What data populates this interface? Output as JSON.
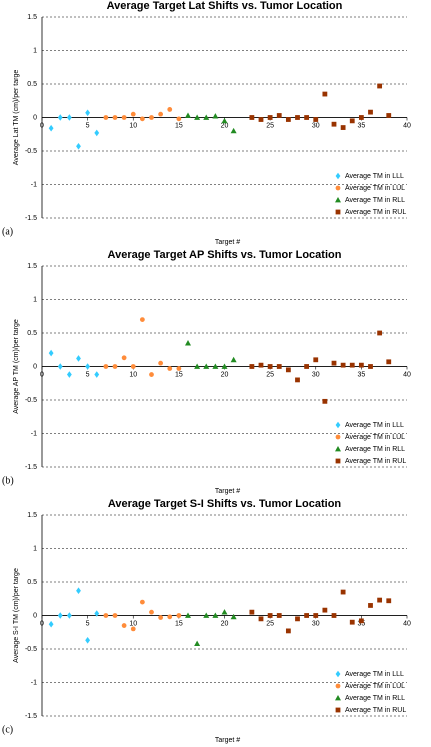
{
  "chart_data": [
    {
      "type": "scatter",
      "title": "Average Target Lat Shifts vs. Tumor Location",
      "panel_label": "(a)",
      "x_label": "Target #",
      "y_label": "Average Lat TM (cm)/per targe",
      "xlim": [
        0,
        40
      ],
      "xticks": [
        0,
        5,
        10,
        15,
        20,
        25,
        30,
        35,
        40
      ],
      "ylim": [
        -1.5,
        1.5
      ],
      "yticks": [
        1.5,
        1,
        0.5,
        0,
        -0.5,
        -1,
        -1.5
      ],
      "grid": true,
      "legend": "lower-right",
      "series": [
        {
          "name": "Average TM in LLL",
          "color": "#33ccff",
          "marker": "diamond",
          "x": [
            1,
            2,
            3,
            4,
            5,
            6
          ],
          "values": [
            -0.16,
            0,
            0,
            -0.43,
            0.07,
            -0.23
          ]
        },
        {
          "name": "Average TM in LUL",
          "color": "#ff8c3a",
          "marker": "circle",
          "x": [
            7,
            8,
            9,
            10,
            11,
            12,
            13,
            14,
            15
          ],
          "values": [
            0,
            0,
            0,
            0.05,
            -0.02,
            0,
            0.05,
            0.12,
            -0.02
          ]
        },
        {
          "name": "Average TM in RLL",
          "color": "#228b22",
          "marker": "triangle",
          "x": [
            16,
            17,
            18,
            19,
            20,
            21
          ],
          "values": [
            0.03,
            0,
            0,
            0.02,
            -0.05,
            -0.2
          ]
        },
        {
          "name": "Average TM in RUL",
          "color": "#993300",
          "marker": "square",
          "x": [
            23,
            24,
            25,
            26,
            27,
            28,
            29,
            30,
            31,
            32,
            33,
            34,
            35,
            36,
            37,
            38
          ],
          "values": [
            0,
            -0.03,
            0,
            0.03,
            -0.03,
            0,
            0,
            -0.03,
            0.35,
            -0.1,
            -0.15,
            -0.05,
            0,
            0.08,
            0.47,
            0.03
          ]
        }
      ]
    },
    {
      "type": "scatter",
      "title": "Average Target AP Shifts vs. Tumor Location",
      "panel_label": "(b)",
      "x_label": "Target #",
      "y_label": "Average AP TM (cm)/per targe",
      "xlim": [
        0,
        40
      ],
      "xticks": [
        0,
        5,
        10,
        15,
        20,
        25,
        30,
        35,
        40
      ],
      "ylim": [
        -1.5,
        1.5
      ],
      "yticks": [
        1.5,
        1,
        0.5,
        0,
        -0.5,
        -1,
        -1.5
      ],
      "grid": true,
      "legend": "lower-right",
      "series": [
        {
          "name": "Average TM in LLL",
          "color": "#33ccff",
          "marker": "diamond",
          "x": [
            1,
            2,
            3,
            4,
            5,
            6
          ],
          "values": [
            0.2,
            0,
            -0.12,
            0.12,
            0,
            -0.12
          ]
        },
        {
          "name": "Average TM in LUL",
          "color": "#ff8c3a",
          "marker": "circle",
          "x": [
            7,
            8,
            9,
            10,
            11,
            12,
            13,
            14,
            15
          ],
          "values": [
            0,
            0,
            0.13,
            0,
            0.7,
            -0.12,
            0.05,
            -0.03,
            -0.03
          ]
        },
        {
          "name": "Average TM in RLL",
          "color": "#228b22",
          "marker": "triangle",
          "x": [
            16,
            17,
            18,
            19,
            20,
            21
          ],
          "values": [
            0.35,
            0,
            0,
            0,
            0,
            0.1
          ]
        },
        {
          "name": "Average TM in RUL",
          "color": "#993300",
          "marker": "square",
          "x": [
            23,
            24,
            25,
            26,
            27,
            28,
            29,
            30,
            31,
            32,
            33,
            34,
            35,
            36,
            37,
            38
          ],
          "values": [
            0,
            0.02,
            0,
            0,
            -0.05,
            -0.2,
            0,
            0.1,
            -0.52,
            0.05,
            0.02,
            0.02,
            0.02,
            0,
            0.5,
            0.07
          ]
        }
      ]
    },
    {
      "type": "scatter",
      "title": "Average Target S-I Shifts vs. Tumor Location",
      "panel_label": "(c)",
      "x_label": "Target #",
      "y_label": "Average S-I TM (cm)/per targe",
      "xlim": [
        0,
        40
      ],
      "xticks": [
        0,
        5,
        10,
        15,
        20,
        25,
        30,
        35,
        40
      ],
      "ylim": [
        -1.5,
        1.5
      ],
      "yticks": [
        1.5,
        1,
        0.5,
        0,
        -0.5,
        -1,
        -1.5
      ],
      "grid": true,
      "legend": "lower-right",
      "series": [
        {
          "name": "Average TM in LLL",
          "color": "#33ccff",
          "marker": "diamond",
          "x": [
            1,
            2,
            3,
            4,
            5,
            6
          ],
          "values": [
            -0.13,
            0,
            0,
            0.37,
            -0.37,
            0.03
          ]
        },
        {
          "name": "Average TM in LUL",
          "color": "#ff8c3a",
          "marker": "circle",
          "x": [
            7,
            8,
            9,
            10,
            11,
            12,
            13,
            14,
            15
          ],
          "values": [
            0,
            0,
            -0.15,
            -0.2,
            0.2,
            0.05,
            -0.03,
            -0.02,
            0
          ]
        },
        {
          "name": "Average TM in RLL",
          "color": "#228b22",
          "marker": "triangle",
          "x": [
            16,
            17,
            18,
            19,
            20,
            21
          ],
          "values": [
            0,
            -0.42,
            0,
            0,
            0.05,
            -0.02
          ]
        },
        {
          "name": "Average TM in RUL",
          "color": "#993300",
          "marker": "square",
          "x": [
            23,
            24,
            25,
            26,
            27,
            28,
            29,
            30,
            31,
            32,
            33,
            34,
            35,
            36,
            37,
            38
          ],
          "values": [
            0.05,
            -0.05,
            0,
            0,
            -0.23,
            -0.05,
            0,
            0,
            0.08,
            0,
            0.35,
            -0.1,
            -0.08,
            0.15,
            0.23,
            0.22
          ]
        }
      ]
    }
  ]
}
